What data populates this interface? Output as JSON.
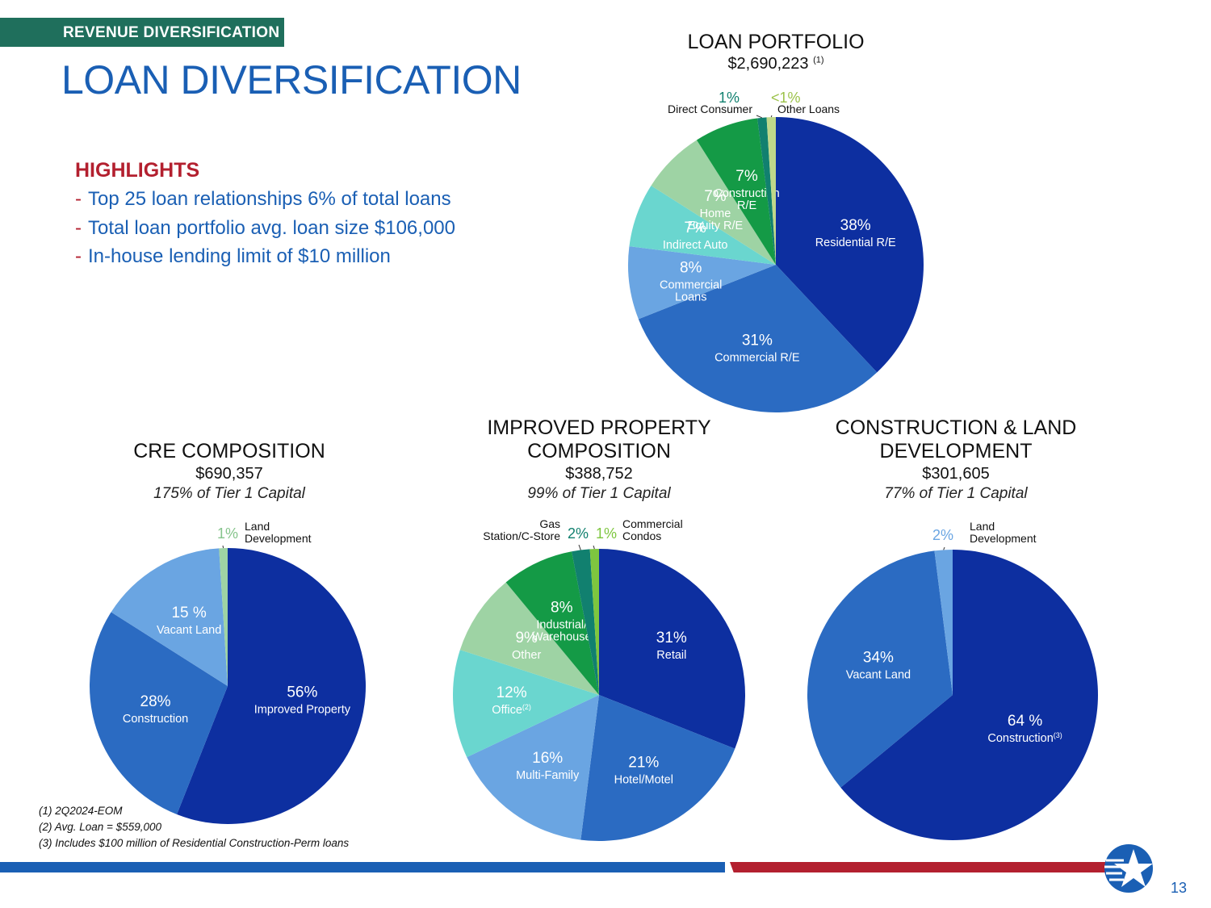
{
  "header": {
    "section": "REVENUE DIVERSIFICATION",
    "title": "LOAN DIVERSIFICATION"
  },
  "highlights": {
    "title": "HIGHLIGHTS",
    "items": [
      "Top 25 loan relationships 6% of total loans",
      "Total loan portfolio avg. loan size $106,000",
      "In-house lending limit of $10 million"
    ]
  },
  "chart_data": [
    {
      "id": "loan-portfolio",
      "type": "pie",
      "title": "LOAN PORTFOLIO",
      "amount": "$2,690,223",
      "amount_note": "(1)",
      "slices": [
        {
          "pct": 38,
          "label": "38%",
          "name": "Residential R/E",
          "color": "#0d2fa0"
        },
        {
          "pct": 31,
          "label": "31%",
          "name": "Commercial R/E",
          "color": "#2b6bc2"
        },
        {
          "pct": 8,
          "label": "8%",
          "name": "Commercial Loans",
          "color": "#6aa5e2"
        },
        {
          "pct": 7,
          "label": "7%",
          "name": "Indirect Auto",
          "color": "#6ad6cf"
        },
        {
          "pct": 7,
          "label": "7%",
          "name": "Home Equity R/E",
          "color": "#9ed3a4"
        },
        {
          "pct": 7,
          "label": "7%",
          "name": "Construction R/E",
          "color": "#149a46"
        },
        {
          "pct": 1,
          "label": "1%",
          "name": "Direct Consumer",
          "color": "#11806f"
        },
        {
          "pct": 1,
          "label": "<1%",
          "name": "Other Loans",
          "color": "#bfd88a"
        }
      ]
    },
    {
      "id": "cre",
      "type": "pie",
      "title": "CRE COMPOSITION",
      "amount": "$690,357",
      "capital": "175% of Tier 1 Capital",
      "slices": [
        {
          "pct": 56,
          "label": "56%",
          "name": "Improved Property",
          "color": "#0d2fa0"
        },
        {
          "pct": 28,
          "label": "28%",
          "name": "Construction",
          "color": "#2b6bc2"
        },
        {
          "pct": 15,
          "label": "15 %",
          "name": "Vacant Land",
          "color": "#6aa5e2"
        },
        {
          "pct": 1,
          "label": "1%",
          "name": "Land Development",
          "color": "#9ed3a4"
        }
      ]
    },
    {
      "id": "improved",
      "type": "pie",
      "title": "IMPROVED PROPERTY COMPOSITION",
      "amount": "$388,752",
      "capital": "99% of Tier 1 Capital",
      "slices": [
        {
          "pct": 31,
          "label": "31%",
          "name": "Retail",
          "color": "#0d2fa0"
        },
        {
          "pct": 21,
          "label": "21%",
          "name": "Hotel/Motel",
          "color": "#2b6bc2"
        },
        {
          "pct": 16,
          "label": "16%",
          "name": "Multi-Family",
          "color": "#6aa5e2"
        },
        {
          "pct": 12,
          "label": "12%",
          "name": "Office",
          "sup": "(2)",
          "color": "#6ad6cf"
        },
        {
          "pct": 9,
          "label": "9%",
          "name": "Other",
          "color": "#9ed3a4"
        },
        {
          "pct": 8,
          "label": "8%",
          "name": "Industrial/ Warehouse",
          "color": "#149a46"
        },
        {
          "pct": 2,
          "label": "2%",
          "name": "Gas Station/C-Store",
          "color": "#11806f"
        },
        {
          "pct": 1,
          "label": "1%",
          "name": "Commercial Condos",
          "color": "#7ec63f"
        }
      ]
    },
    {
      "id": "construction",
      "type": "pie",
      "title": "CONSTRUCTION & LAND DEVELOPMENT",
      "amount": "$301,605",
      "capital": "77% of Tier 1 Capital",
      "slices": [
        {
          "pct": 64,
          "label": "64 %",
          "name": "Construction",
          "sup": "(3)",
          "color": "#0d2fa0"
        },
        {
          "pct": 34,
          "label": "34%",
          "name": "Vacant Land",
          "color": "#2b6bc2"
        },
        {
          "pct": 2,
          "label": "2%",
          "name": "Land Development",
          "color": "#6aa5e2"
        }
      ]
    }
  ],
  "footnotes": [
    "(1) 2Q2024-EOM",
    "(2) Avg. Loan = $559,000",
    "(3) Includes $100 million of Residential Construction-Perm loans"
  ],
  "page_number": "13",
  "colors": {
    "accent_blue": "#1a5fb4",
    "accent_red": "#b3202f",
    "tag_green": "#1f6f5c"
  }
}
